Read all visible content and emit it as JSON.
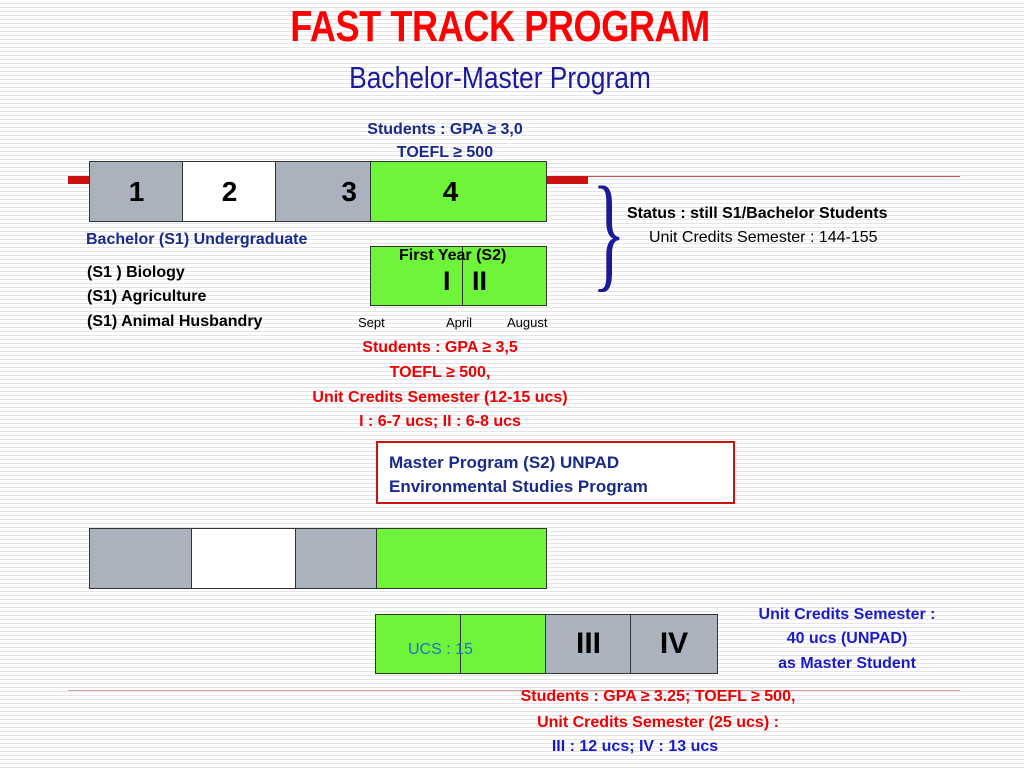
{
  "title": "FAST TRACK PROGRAM",
  "subtitle": "Bachelor-Master Program",
  "top_requirement": {
    "line1": "Students : GPA ≥ 3,0",
    "line2": "TOEFL ≥ 500"
  },
  "top_boxes": [
    "1",
    "2",
    "3",
    "4"
  ],
  "bachelor_label": "Bachelor  (S1) Undergraduate",
  "programs": [
    "(S1 ) Biology",
    "(S1)  Agriculture",
    "(S1)  Animal Husbandry"
  ],
  "first_year": {
    "label": "First Year (S2)",
    "sem1": "I",
    "sem2": "II"
  },
  "months": {
    "sept": "Sept",
    "april": "April",
    "august": "August"
  },
  "status": {
    "line1": "Status : still  S1/Bachelor Students",
    "line2": "Unit Credits Semester : 144-155"
  },
  "mid_requirement": {
    "line1": "Students : GPA ≥ 3,5",
    "line2": "TOEFL ≥ 500,",
    "line3": "Unit Credits Semester (12-15 ucs)",
    "line4": "I : 6-7 ucs; II : 6-8 ucs"
  },
  "master_box": {
    "line1": "Master Program (S2) UNPAD",
    "line2": "Environmental Studies Program"
  },
  "ucs_label": "UCS : 15",
  "bottom_semesters": {
    "sem3": "III",
    "sem4": "IV"
  },
  "unit_credits_master": {
    "line1": "Unit Credits Semester :",
    "line2": "40 ucs (UNPAD)",
    "line3": "as Master Student"
  },
  "bottom_requirement": {
    "line1": "Students : GPA ≥ 3.25; TOEFL ≥ 500,",
    "line2": "Unit Credits Semester (25 ucs) :",
    "line3": "III : 12 ucs; IV : 13 ucs"
  },
  "colors": {
    "title_red": "#ff0000",
    "navy": "#1a2a8a",
    "gray_box": "#a9b2bd",
    "green_box": "#6ef53a",
    "req_red": "#ee0000"
  }
}
